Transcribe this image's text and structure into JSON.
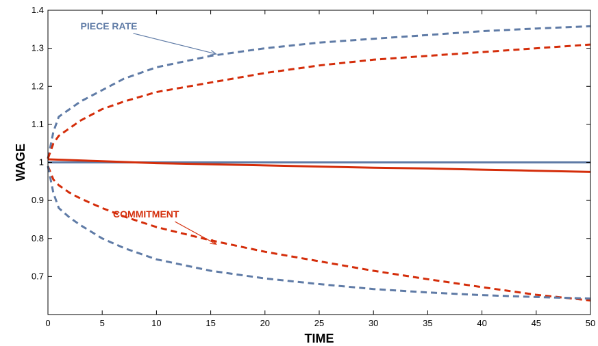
{
  "chart_data": {
    "type": "line",
    "title": "",
    "xlabel": "TIME",
    "ylabel": "WAGE",
    "xlim": [
      0,
      50
    ],
    "ylim": [
      0.6,
      1.4
    ],
    "xticks": [
      0,
      5,
      10,
      15,
      20,
      25,
      30,
      35,
      40,
      45,
      50
    ],
    "yticks": [
      0.7,
      0.8,
      0.9,
      1,
      1.1,
      1.2,
      1.3,
      1.4
    ],
    "ytick_labels": [
      "0.7",
      "0.8",
      "0.9",
      "1",
      "1.1",
      "1.2",
      "1.3",
      "1.4"
    ],
    "grid": false,
    "legend": "none",
    "colors": {
      "piece_rate": "#5f7ba6",
      "commitment": "#d42d0a"
    },
    "annotations": [
      {
        "text": "PIECE RATE",
        "color": "#5f7ba6",
        "x": 3,
        "y": 1.35,
        "arrow_to": [
          15.5,
          1.285
        ]
      },
      {
        "text": "COMMITMENT",
        "color": "#d42d0a",
        "x": 6,
        "y": 0.855,
        "arrow_to": [
          15.5,
          0.785
        ]
      }
    ],
    "series": [
      {
        "key": "piece_rate_upper",
        "color": "#5f7ba6",
        "style": "dashed",
        "x": [
          0,
          0.5,
          1,
          2,
          3,
          5,
          7,
          10,
          15,
          20,
          25,
          30,
          35,
          40,
          45,
          50
        ],
        "y": [
          1.01,
          1.08,
          1.12,
          1.14,
          1.16,
          1.19,
          1.22,
          1.25,
          1.28,
          1.3,
          1.315,
          1.325,
          1.335,
          1.345,
          1.352,
          1.358
        ]
      },
      {
        "key": "commitment_upper",
        "color": "#d42d0a",
        "style": "dashed",
        "x": [
          0,
          0.5,
          1,
          2,
          3,
          5,
          7,
          10,
          15,
          20,
          25,
          30,
          35,
          40,
          45,
          50
        ],
        "y": [
          1.01,
          1.05,
          1.07,
          1.09,
          1.11,
          1.14,
          1.16,
          1.185,
          1.21,
          1.235,
          1.255,
          1.27,
          1.28,
          1.29,
          1.3,
          1.31
        ]
      },
      {
        "key": "piece_rate_flat",
        "color": "#5f7ba6",
        "style": "solid",
        "x": [
          0,
          50
        ],
        "y": [
          1.0,
          1.0
        ]
      },
      {
        "key": "commitment_flat",
        "color": "#d42d0a",
        "style": "solid",
        "x": [
          0,
          5,
          10,
          15,
          20,
          25,
          30,
          35,
          40,
          45,
          50
        ],
        "y": [
          1.008,
          1.003,
          0.998,
          0.995,
          0.992,
          0.989,
          0.986,
          0.984,
          0.981,
          0.978,
          0.975
        ]
      },
      {
        "key": "commitment_lower",
        "color": "#d42d0a",
        "style": "dashed",
        "x": [
          0,
          0.5,
          1,
          2,
          3,
          5,
          7,
          10,
          15,
          20,
          25,
          30,
          35,
          40,
          45,
          50
        ],
        "y": [
          0.99,
          0.955,
          0.94,
          0.92,
          0.905,
          0.88,
          0.858,
          0.83,
          0.795,
          0.765,
          0.74,
          0.715,
          0.693,
          0.672,
          0.652,
          0.637
        ]
      },
      {
        "key": "piece_rate_lower",
        "color": "#5f7ba6",
        "style": "dashed",
        "x": [
          0,
          0.5,
          1,
          2,
          3,
          5,
          7,
          10,
          15,
          20,
          25,
          30,
          35,
          40,
          45,
          50
        ],
        "y": [
          0.99,
          0.92,
          0.88,
          0.855,
          0.835,
          0.8,
          0.775,
          0.745,
          0.715,
          0.695,
          0.68,
          0.667,
          0.658,
          0.651,
          0.646,
          0.642
        ]
      }
    ]
  }
}
